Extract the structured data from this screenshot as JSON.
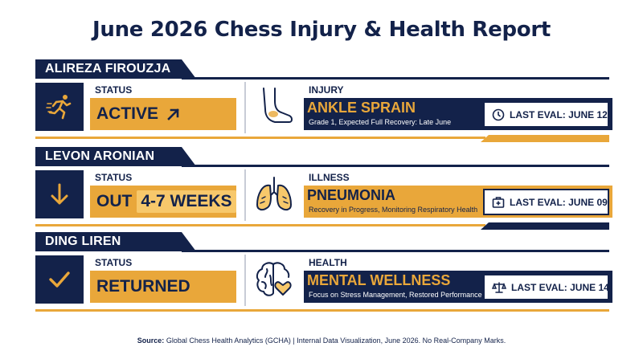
{
  "title": "June 2026 Chess Injury & Health Report",
  "players": [
    {
      "name": "ALIREZA FIROUZJA",
      "status_label": "STATUS",
      "status": "ACTIVE",
      "category_label": "INJURY",
      "condition": "ANKLE SPRAIN",
      "condition_detail": "Grade 1, Expected Full Recovery: Late June",
      "last_eval": "LAST EVAL: JUNE 12",
      "status_icon": "running-person-icon",
      "condition_icon": "foot-icon",
      "eval_icon": "clock-icon"
    },
    {
      "name": "LEVON ARONIAN",
      "status_label": "STATUS",
      "status": "OUT",
      "status_highlight": "4-7 WEEKS",
      "category_label": "ILLNESS",
      "condition": "PNEUMONIA",
      "condition_detail": "Recovery in Progress, Monitoring Respiratory Health",
      "last_eval": "LAST EVAL: JUNE 09",
      "status_icon": "arrow-down-icon",
      "condition_icon": "lungs-icon",
      "eval_icon": "medical-kit-icon"
    },
    {
      "name": "DING LIREN",
      "status_label": "STATUS",
      "status": "RETURNED",
      "category_label": "HEALTH",
      "condition": "MENTAL WELLNESS",
      "condition_detail": "Focus on Stress Management, Restored Performance",
      "last_eval": "LAST EVAL: JUNE 14",
      "status_icon": "checkmark-icon",
      "condition_icon": "brain-heart-icon",
      "eval_icon": "scales-icon"
    }
  ],
  "source_label": "Source:",
  "source_text": "Global Chess Health Analytics (GCHA) | Internal Data Visualization, June 2026. No Real-Company Marks.",
  "colors": {
    "navy": "#13224a",
    "gold": "#e9a73a",
    "light_gold": "#f7c86b",
    "white": "#ffffff"
  }
}
